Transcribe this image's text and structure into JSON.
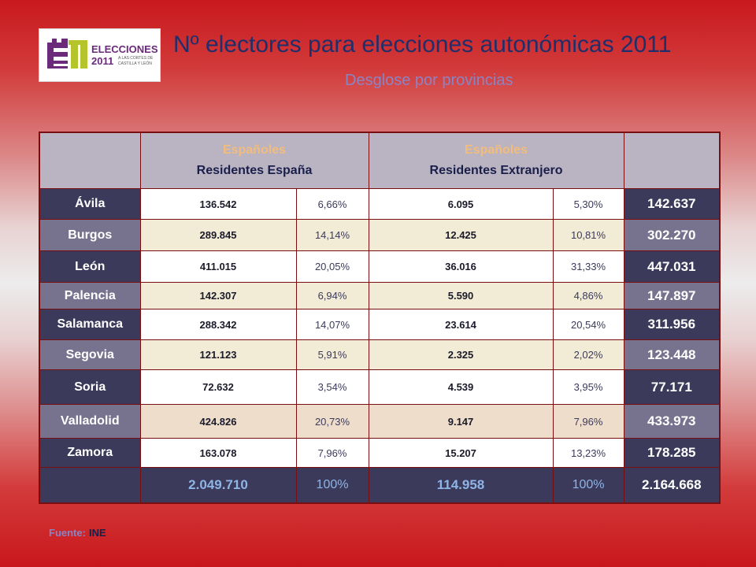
{
  "logo": {
    "word": "ELECCIONES",
    "year": "2011",
    "caption_line1": "A LAS CORTES DE",
    "caption_line2": "CASTILLA Y LEÓN"
  },
  "title": "Nº electores para elecciones autonómicas 2011",
  "subtitle": "Desglose por provincias",
  "table": {
    "header": {
      "col1_line1": "Españoles",
      "col1_line2": "Residentes España",
      "col2_line1": "Españoles",
      "col2_line2": "Residentes Extranjero"
    },
    "rows": [
      {
        "province": "Ávila",
        "res_spain": "136.542",
        "res_spain_pct": "6,66%",
        "res_abroad": "6.095",
        "res_abroad_pct": "5,30%",
        "total": "142.637"
      },
      {
        "province": "Burgos",
        "res_spain": "289.845",
        "res_spain_pct": "14,14%",
        "res_abroad": "12.425",
        "res_abroad_pct": "10,81%",
        "total": "302.270"
      },
      {
        "province": "León",
        "res_spain": "411.015",
        "res_spain_pct": "20,05%",
        "res_abroad": "36.016",
        "res_abroad_pct": "31,33%",
        "total": "447.031"
      },
      {
        "province": "Palencia",
        "res_spain": "142.307",
        "res_spain_pct": "6,94%",
        "res_abroad": "5.590",
        "res_abroad_pct": "4,86%",
        "total": "147.897"
      },
      {
        "province": "Salamanca",
        "res_spain": "288.342",
        "res_spain_pct": "14,07%",
        "res_abroad": "23.614",
        "res_abroad_pct": "20,54%",
        "total": "311.956"
      },
      {
        "province": "Segovia",
        "res_spain": "121.123",
        "res_spain_pct": "5,91%",
        "res_abroad": "2.325",
        "res_abroad_pct": "2,02%",
        "total": "123.448"
      },
      {
        "province": "Soria",
        "res_spain": "72.632",
        "res_spain_pct": "3,54%",
        "res_abroad": "4.539",
        "res_abroad_pct": "3,95%",
        "total": "77.171"
      },
      {
        "province": "Valladolid",
        "res_spain": "424.826",
        "res_spain_pct": "20,73%",
        "res_abroad": "9.147",
        "res_abroad_pct": "7,96%",
        "total": "433.973"
      },
      {
        "province": "Zamora",
        "res_spain": "163.078",
        "res_spain_pct": "7,96%",
        "res_abroad": "15.207",
        "res_abroad_pct": "13,23%",
        "total": "178.285"
      }
    ],
    "totals": {
      "res_spain": "2.049.710",
      "res_spain_pct": "100%",
      "res_abroad": "114.958",
      "res_abroad_pct": "100%",
      "total": "2.164.668"
    }
  },
  "source": {
    "label": "Fuente:",
    "value": "INE"
  },
  "colors": {
    "title": "#1f2f6b",
    "subtitle": "#8b84c2",
    "header_bg": "#b9b3c2",
    "province_dark": "#3b3a5b",
    "province_light": "#77738f",
    "border": "#7a0d10",
    "logo_purple": "#6b2a7a",
    "logo_green": "#b5c42a"
  }
}
